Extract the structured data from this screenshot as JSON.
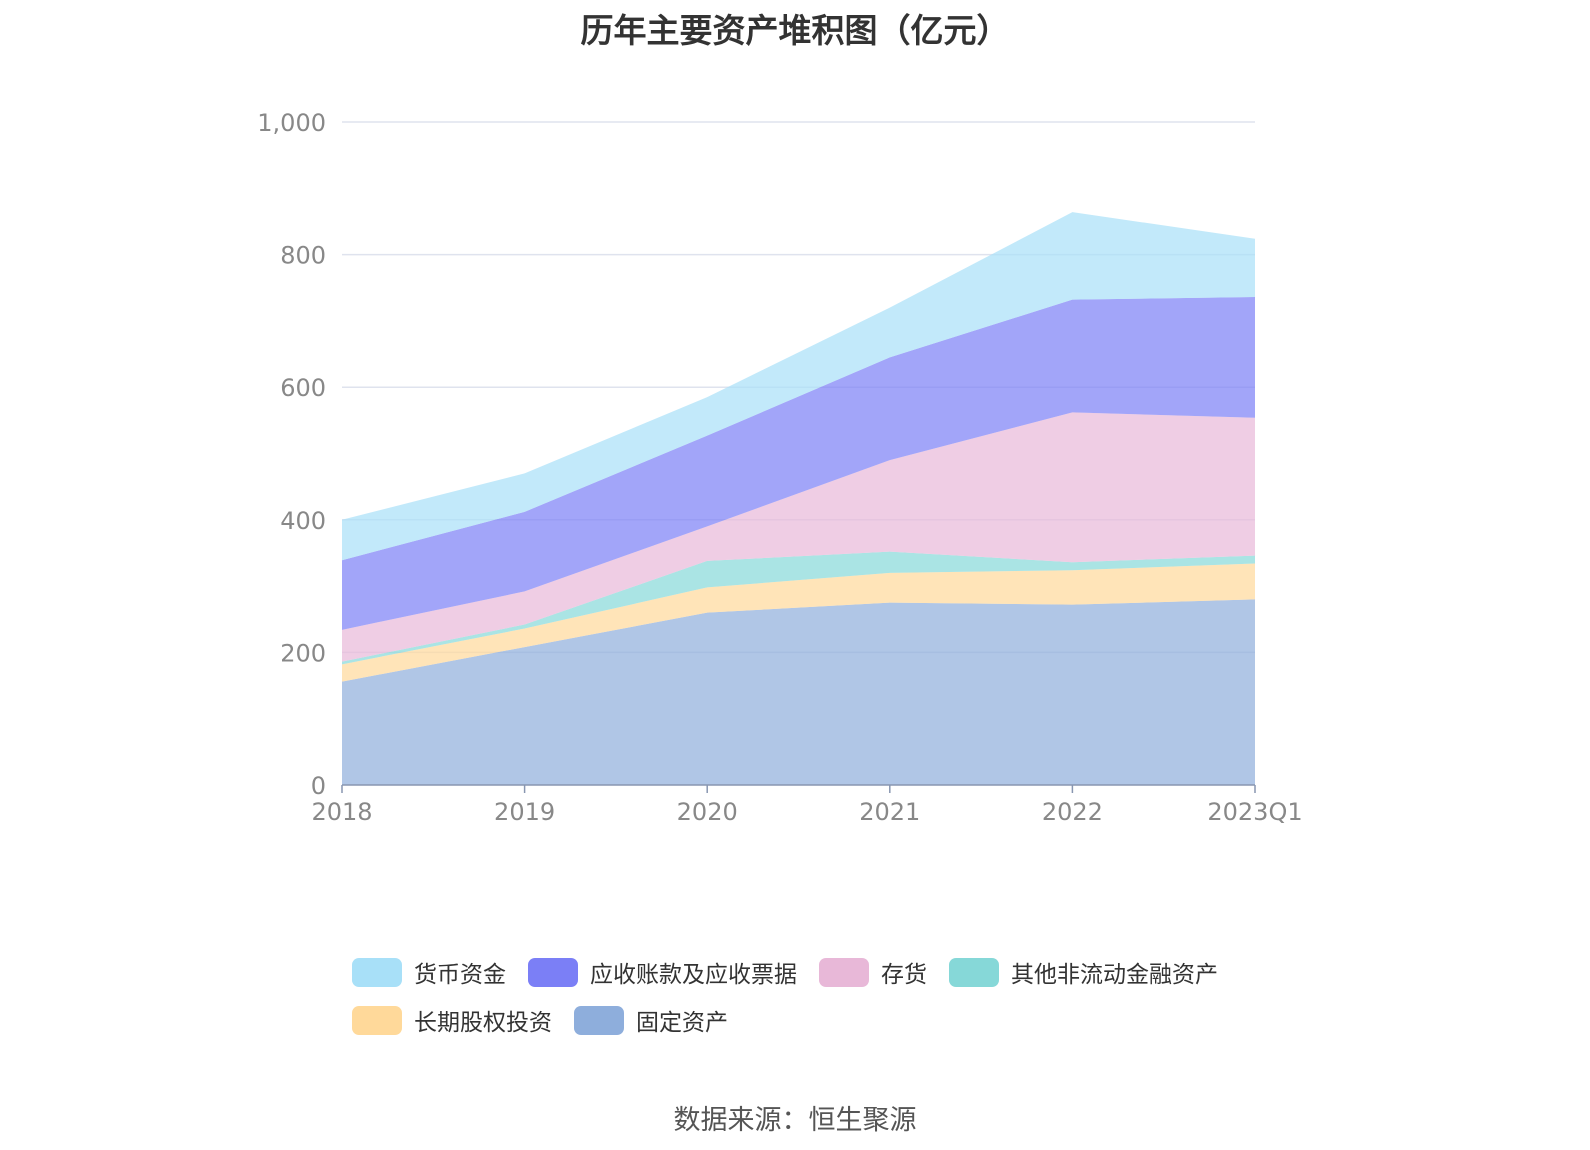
{
  "chart_data": {
    "type": "area",
    "stacked": true,
    "title": "历年主要资产堆积图（亿元）",
    "categories": [
      "2018",
      "2019",
      "2020",
      "2021",
      "2022",
      "2023Q1"
    ],
    "ylim": [
      0,
      1000
    ],
    "yticks": [
      0,
      200,
      400,
      600,
      800,
      1000
    ],
    "ytick_labels": [
      "0",
      "200",
      "400",
      "600",
      "800",
      "1,000"
    ],
    "grid": true,
    "legend_position": "bottom",
    "series": [
      {
        "name": "固定资产",
        "color": "#8eaedc",
        "values": [
          156,
          208,
          260,
          275,
          272,
          280
        ]
      },
      {
        "name": "长期股权投资",
        "color": "#ffd99a",
        "values": [
          26,
          28,
          38,
          45,
          52,
          54
        ]
      },
      {
        "name": "其他非流动金融资产",
        "color": "#86d8d8",
        "values": [
          4,
          6,
          40,
          32,
          12,
          12
        ]
      },
      {
        "name": "存货",
        "color": "#e8b8d8",
        "values": [
          48,
          50,
          52,
          138,
          226,
          208
        ]
      },
      {
        "name": "应收账款及应收票据",
        "color": "#7b7ff6",
        "values": [
          105,
          120,
          137,
          155,
          170,
          182
        ]
      },
      {
        "name": "货币资金",
        "color": "#a8e0f8",
        "values": [
          61,
          58,
          58,
          75,
          132,
          88
        ]
      }
    ]
  },
  "legend": {
    "rows": [
      [
        {
          "label": "货币资金",
          "color": "#a8e0f8"
        },
        {
          "label": "应收账款及应收票据",
          "color": "#7b7ff6"
        },
        {
          "label": "存货",
          "color": "#e8b8d8"
        },
        {
          "label": "其他非流动金融资产",
          "color": "#86d8d8"
        }
      ],
      [
        {
          "label": "长期股权投资",
          "color": "#ffd99a"
        },
        {
          "label": "固定资产",
          "color": "#8eaedc"
        }
      ]
    ]
  },
  "source": "数据来源：恒生聚源"
}
